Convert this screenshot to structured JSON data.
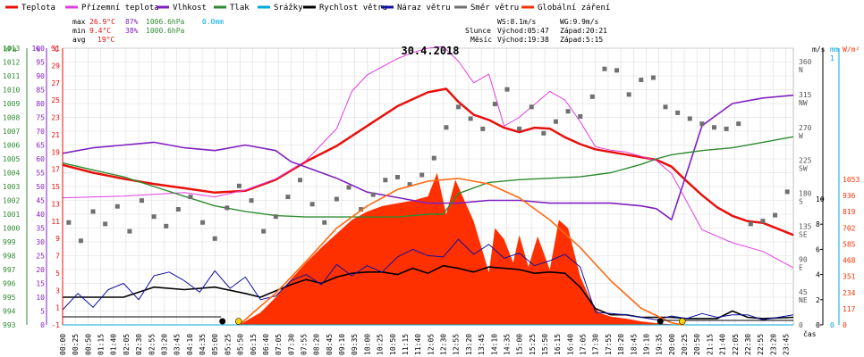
{
  "chart_data": {
    "type": "line",
    "title": "30.4.2018",
    "legend": [
      {
        "name": "Teplota",
        "color": "#e8100c"
      },
      {
        "name": "Přízemní teplota",
        "color": "#e040e0"
      },
      {
        "name": "Vlhkost",
        "color": "#8020c0"
      },
      {
        "name": "Tlak",
        "color": "#2e8b30"
      },
      {
        "name": "Srážky",
        "color": "#00a8d8"
      },
      {
        "name": "Rychlost větru",
        "color": "#000000"
      },
      {
        "name": "Náraz větru",
        "color": "#1010a0"
      },
      {
        "name": "Směr větru",
        "color": "#707070"
      },
      {
        "name": "Globální záření",
        "color": "#ff3000"
      }
    ],
    "stats": {
      "max_label": "max",
      "max_temp": "26.9°C",
      "max_hum": "87%",
      "max_press": "1006.6hPa",
      "max_rain": "0.0mm",
      "min_label": "min",
      "min_temp": "9.4°C",
      "min_hum": "38%",
      "min_press": "1000.6hPa",
      "avg_label": "avg",
      "avg_temp": "19°C"
    },
    "astro": {
      "ws": "WS:8.1m/s",
      "wg": "WG:9.9m/s",
      "sun_label": "Slunce",
      "sun_rise": "Východ:05:47",
      "sun_set": "Západ:20:21",
      "moon_label": "Měsíc",
      "moon_rise": "Východ:19:38",
      "moon_set": "Západ:5:15"
    },
    "axes": {
      "hpa_title": "hPa",
      "pct_title": "%",
      "temp_title": "°C",
      "ms_title": "m/s",
      "mm_title": "mm",
      "wm_title": "W/m²",
      "x_title": "čas",
      "hpa_ticks": [
        "993",
        "994",
        "995",
        "996",
        "997",
        "998",
        "999",
        "1000",
        "1001",
        "1002",
        "1003",
        "1004",
        "1005",
        "1006",
        "1007",
        "1008",
        "1009",
        "1010",
        "1011",
        "1012",
        "1013"
      ],
      "pct_ticks": [
        "0",
        "5",
        "10",
        "15",
        "20",
        "25",
        "30",
        "35",
        "40",
        "45",
        "50",
        "55",
        "60",
        "65",
        "70",
        "75",
        "80",
        "85",
        "90",
        "95",
        "100"
      ],
      "temp_ticks": [
        "-1",
        "1",
        "3",
        "5",
        "7",
        "9",
        "11",
        "13",
        "15",
        "17",
        "19",
        "21",
        "23",
        "25",
        "27",
        "29",
        "31"
      ],
      "dir_ticks": [
        "0",
        "45\nNE",
        "90\nE",
        "135\nSE",
        "180\nS",
        "225\nSW",
        "270\nW",
        "315\nNW",
        "360\nN"
      ],
      "ms_ticks": [
        "0",
        "2",
        "4",
        "6",
        "8",
        "10"
      ],
      "wm_ticks": [
        "0",
        "117",
        "234",
        "351",
        "468",
        "585",
        "702",
        "819",
        "936",
        "1053"
      ],
      "mm_ticks": [
        "0",
        "1"
      ],
      "x_ticks": [
        "00:00",
        "00:25",
        "00:50",
        "01:15",
        "01:40",
        "02:05",
        "02:30",
        "02:55",
        "03:20",
        "03:45",
        "04:10",
        "04:35",
        "05:00",
        "05:25",
        "05:50",
        "06:15",
        "06:40",
        "07:05",
        "07:30",
        "07:55",
        "08:20",
        "08:45",
        "09:10",
        "09:35",
        "10:00",
        "10:25",
        "10:50",
        "11:15",
        "11:40",
        "12:05",
        "12:30",
        "12:55",
        "13:20",
        "13:45",
        "14:10",
        "14:35",
        "15:00",
        "15:25",
        "15:50",
        "16:15",
        "16:40",
        "17:05",
        "17:30",
        "17:55",
        "18:20",
        "18:45",
        "19:10",
        "19:35",
        "20:00",
        "20:25",
        "20:50",
        "21:15",
        "21:40",
        "22:05",
        "22:30",
        "22:55",
        "23:20",
        "23:45"
      ]
    },
    "xlim_hours": [
      0,
      24
    ],
    "series": [
      {
        "name": "Teplota",
        "unit": "°C",
        "x_hours": [
          0,
          1,
          2,
          3,
          4,
          5,
          6,
          7,
          8,
          9,
          10,
          11,
          12,
          12.6,
          13,
          13.5,
          14,
          14.5,
          15,
          15.5,
          16,
          16.5,
          17,
          17.5,
          18,
          18.5,
          19,
          19.5,
          20,
          20.5,
          21,
          21.5,
          22,
          22.5,
          23,
          24
        ],
        "y": [
          17.5,
          16.6,
          15.9,
          15.3,
          14.8,
          14.3,
          14.5,
          15.8,
          17.9,
          19.7,
          22.0,
          24.3,
          25.9,
          26.3,
          24.8,
          23.3,
          22.7,
          21.8,
          21.3,
          21.8,
          21.7,
          20.7,
          19.9,
          19.3,
          19.0,
          18.7,
          18.4,
          18.1,
          17.3,
          15.6,
          14.0,
          12.6,
          11.6,
          11.0,
          10.8,
          9.4
        ]
      },
      {
        "name": "Přízemní teplota",
        "unit": "°C",
        "x_hours": [
          0,
          2,
          4,
          5,
          6,
          7,
          8,
          9,
          9.5,
          10,
          11,
          11.5,
          12,
          12.5,
          13,
          13.5,
          14,
          14.5,
          15,
          15.5,
          16,
          16.5,
          17,
          17.5,
          18,
          18.5,
          19,
          19.5,
          20,
          21,
          22,
          23,
          24
        ],
        "y": [
          13.7,
          13.9,
          14.3,
          13.8,
          14.6,
          15.9,
          18.0,
          21.7,
          26.0,
          27.9,
          29.8,
          30.5,
          31.0,
          31.2,
          29.5,
          27.0,
          28.0,
          22.0,
          23.0,
          24.5,
          26.0,
          25.0,
          22.5,
          19.6,
          19.2,
          19.0,
          18.5,
          18.0,
          16.5,
          10.0,
          8.5,
          7.5,
          5.6
        ]
      },
      {
        "name": "Vlhkost",
        "unit": "%",
        "x_hours": [
          0,
          1,
          2,
          3,
          4,
          5,
          6,
          7,
          7.5,
          8,
          9,
          10,
          11,
          12,
          13,
          14,
          15,
          16,
          17,
          18,
          19,
          19.5,
          20,
          20.5,
          21,
          21.5,
          22,
          23,
          24
        ],
        "y": [
          62,
          64,
          65,
          66,
          64,
          63,
          65,
          63,
          59,
          57,
          53,
          48,
          46,
          44,
          44,
          45,
          45,
          44,
          44,
          44,
          43,
          42,
          38,
          55,
          72,
          76,
          80,
          82,
          83
        ]
      },
      {
        "name": "Tlak",
        "unit": "hPa",
        "x_hours": [
          0,
          1,
          2,
          3,
          4,
          5,
          6,
          7,
          8,
          9,
          10,
          11,
          12,
          12.5,
          13,
          14,
          15,
          16,
          17,
          18,
          19,
          19.5,
          20,
          21,
          22,
          23,
          24
        ],
        "y": [
          1004.7,
          1004.2,
          1003.7,
          1003.0,
          1002.3,
          1001.6,
          1001.2,
          1000.9,
          1000.8,
          1000.8,
          1000.8,
          1000.8,
          1001.0,
          1001.0,
          1002.5,
          1003.3,
          1003.5,
          1003.6,
          1003.7,
          1004.0,
          1004.6,
          1005.0,
          1005.3,
          1005.6,
          1005.8,
          1006.2,
          1006.6
        ]
      },
      {
        "name": "Srážky",
        "unit": "mm",
        "x_hours": [
          0,
          24
        ],
        "y": [
          0.0,
          0.0
        ]
      },
      {
        "name": "Rychlost větru",
        "unit": "m/s",
        "x_hours": [
          0,
          1,
          2,
          3,
          4,
          5,
          6,
          6.5,
          7,
          7.5,
          8,
          8.5,
          9,
          9.5,
          10,
          10.5,
          11,
          11.5,
          12,
          12.5,
          13,
          13.5,
          14,
          14.5,
          15,
          15.5,
          16,
          16.5,
          17,
          17.5,
          18,
          18.5,
          19,
          19.5,
          20,
          20.5,
          21,
          21.5,
          22,
          22.5,
          23,
          24
        ],
        "y": [
          2.2,
          2.2,
          2.2,
          3.0,
          2.8,
          3.0,
          2.5,
          2.2,
          2.7,
          3.2,
          3.6,
          3.3,
          3.8,
          4.1,
          4.2,
          4.2,
          4.0,
          4.5,
          4.1,
          4.7,
          4.5,
          4.2,
          4.6,
          4.5,
          4.4,
          4.1,
          4.2,
          4.1,
          3.0,
          1.3,
          0.8,
          0.8,
          0.6,
          0.6,
          0.6,
          0.5,
          0.5,
          0.5,
          1.1,
          0.6,
          0.5,
          0.6
        ]
      },
      {
        "name": "Náraz větru",
        "unit": "m/s",
        "x_hours": [
          0,
          0.5,
          1,
          1.5,
          2,
          2.5,
          3,
          3.5,
          4,
          4.5,
          5,
          5.5,
          6,
          6.5,
          7,
          7.5,
          8,
          8.5,
          9,
          9.5,
          10,
          10.5,
          11,
          11.5,
          12,
          12.5,
          13,
          13.5,
          14,
          14.5,
          15,
          15.5,
          16,
          16.5,
          17,
          17.5,
          18,
          18.5,
          19,
          19.5,
          20,
          20.5,
          21,
          21.5,
          22,
          22.5,
          23,
          24
        ],
        "y": [
          1.2,
          2.5,
          1.4,
          2.8,
          3.3,
          2.0,
          3.9,
          4.2,
          3.5,
          2.6,
          4.3,
          2.9,
          3.8,
          2.0,
          2.3,
          3.5,
          4.0,
          3.2,
          4.8,
          3.9,
          4.7,
          4.2,
          5.4,
          6.0,
          5.5,
          5.4,
          6.8,
          5.6,
          6.4,
          5.3,
          5.7,
          4.7,
          5.1,
          5.6,
          4.6,
          1.0,
          0.9,
          0.8,
          0.6,
          0.4,
          0.7,
          0.5,
          0.9,
          0.6,
          0.8,
          0.8,
          0.4,
          0.8
        ]
      },
      {
        "name": "Směr větru",
        "unit": "°",
        "type": "scatter",
        "x_hours": [
          0.2,
          0.6,
          1.0,
          1.4,
          1.8,
          2.2,
          2.6,
          3.0,
          3.4,
          3.8,
          4.2,
          4.6,
          5.0,
          5.4,
          5.8,
          6.2,
          6.6,
          7.0,
          7.4,
          7.8,
          8.2,
          8.6,
          9.0,
          9.4,
          9.8,
          10.2,
          10.6,
          11.0,
          11.4,
          11.8,
          12.2,
          12.6,
          13.0,
          13.4,
          13.8,
          14.2,
          14.6,
          15.0,
          15.4,
          15.8,
          16.2,
          16.6,
          17.0,
          17.4,
          17.8,
          18.2,
          18.6,
          19.0,
          19.4,
          19.8,
          20.2,
          20.6,
          21.0,
          21.4,
          21.8,
          22.2,
          22.6,
          23.0,
          23.4,
          23.8
        ],
        "y": [
          140,
          115,
          155,
          138,
          162,
          128,
          170,
          148,
          135,
          158,
          175,
          140,
          118,
          160,
          190,
          170,
          128,
          148,
          175,
          198,
          165,
          140,
          172,
          188,
          158,
          178,
          198,
          202,
          192,
          205,
          228,
          270,
          298,
          282,
          268,
          302,
          322,
          268,
          298,
          262,
          278,
          292,
          285,
          312,
          350,
          348,
          315,
          335,
          338,
          298,
          290,
          282,
          275,
          270,
          268,
          275,
          138,
          142,
          150,
          182
        ]
      },
      {
        "name": "Globální záření",
        "unit": "W/m²",
        "type": "area",
        "x_hours": [
          5.8,
          6.5,
          7,
          7.5,
          8,
          8.5,
          9,
          9.5,
          10,
          10.5,
          11,
          11.5,
          12,
          12.3,
          12.6,
          12.9,
          13.2,
          13.5,
          14,
          14.2,
          14.5,
          14.8,
          15,
          15.3,
          15.6,
          16,
          16.3,
          16.6,
          17,
          17.3,
          17.6,
          18,
          18.5,
          19,
          19.5,
          20,
          20.3
        ],
        "y": [
          0,
          90,
          200,
          330,
          450,
          560,
          660,
          760,
          820,
          860,
          880,
          900,
          930,
          1100,
          800,
          1050,
          900,
          750,
          380,
          700,
          620,
          450,
          650,
          420,
          640,
          400,
          760,
          700,
          350,
          200,
          90,
          60,
          45,
          25,
          12,
          5,
          0
        ]
      },
      {
        "name": "Globální záření (teoretické)",
        "unit": "W/m²",
        "x_hours": [
          5.8,
          7,
          8,
          9,
          10,
          11,
          12,
          13,
          14,
          15,
          16,
          17,
          18,
          19,
          20,
          20.4
        ],
        "y": [
          0,
          230,
          460,
          700,
          860,
          980,
          1040,
          1060,
          1020,
          920,
          760,
          560,
          320,
          120,
          15,
          0
        ]
      }
    ]
  }
}
